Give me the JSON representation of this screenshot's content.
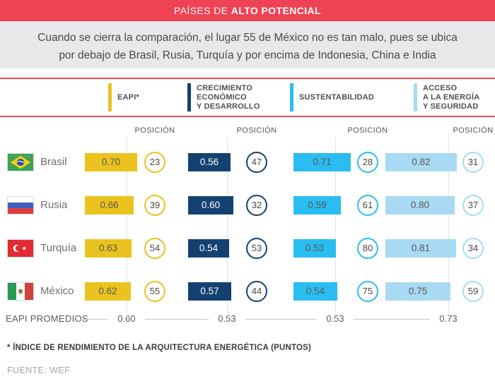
{
  "header": {
    "title_prefix": "PAÍSES DE ",
    "title_bold": "ALTO POTENCIAL"
  },
  "subtitle": {
    "line1": "Cuando se cierra la comparación, el lugar 55 de México no es tan malo, pues se ubica",
    "line2": "por debajo de Brasil, Rusia, Turquía y por encima de Indonesia, China e India"
  },
  "legend": {
    "items": [
      {
        "key": "eapi",
        "color": "#EAC31E",
        "lines": [
          "EAPI*",
          "",
          ""
        ]
      },
      {
        "key": "crecimiento",
        "color": "#14416F",
        "lines": [
          "CRECIMIENTO",
          "ECONÓMICO",
          "Y DESARROLLO"
        ]
      },
      {
        "key": "sustentabilidad",
        "color": "#29BDF2",
        "lines": [
          "SUSTENTABILIDAD",
          "",
          ""
        ]
      },
      {
        "key": "acceso",
        "color": "#A9DAF3",
        "lines": [
          "ACCESO",
          "A LA ENERGÍA",
          "Y SEGURIDAD"
        ]
      }
    ]
  },
  "labels": {
    "position": "POSICIÓN",
    "averages": "EAPI PROMEDIOS"
  },
  "chart_data": {
    "type": "table",
    "metrics": [
      "EAPI*",
      "CRECIMIENTO ECONÓMICO Y DESARROLLO",
      "SUSTENTABILIDAD",
      "ACCESO A LA ENERGÍA Y SEGURIDAD"
    ],
    "metric_colors": [
      "#EAC31E",
      "#14416F",
      "#29BDF2",
      "#A9DAF3"
    ],
    "value_scale_note": "score in points (0-1) with ranking position in circle",
    "countries": [
      {
        "name": "Brasil",
        "flag": "br",
        "values": [
          "0.70",
          "0.56",
          "0.71",
          "0.82"
        ],
        "positions": [
          "23",
          "47",
          "28",
          "31"
        ]
      },
      {
        "name": "Rusia",
        "flag": "ru",
        "values": [
          "0.66",
          "0.60",
          "0.59",
          "0.80"
        ],
        "positions": [
          "39",
          "32",
          "61",
          "37"
        ]
      },
      {
        "name": "Turquía",
        "flag": "tr",
        "values": [
          "0.63",
          "0.54",
          "0.53",
          "0.81"
        ],
        "positions": [
          "54",
          "53",
          "80",
          "34"
        ]
      },
      {
        "name": "México",
        "flag": "mx",
        "values": [
          "0.62",
          "0.57",
          "0.54",
          "0.75"
        ],
        "positions": [
          "55",
          "44",
          "75",
          "59"
        ]
      }
    ],
    "averages": [
      "0.60",
      "0.53",
      "0.53",
      "0.73"
    ]
  },
  "footnote": "* ÍNDICE DE RENDIMIENTO DE LA ARQUITECTURA ENERGÉTICA (PUNTOS)",
  "source": "FUENTE: WEF"
}
